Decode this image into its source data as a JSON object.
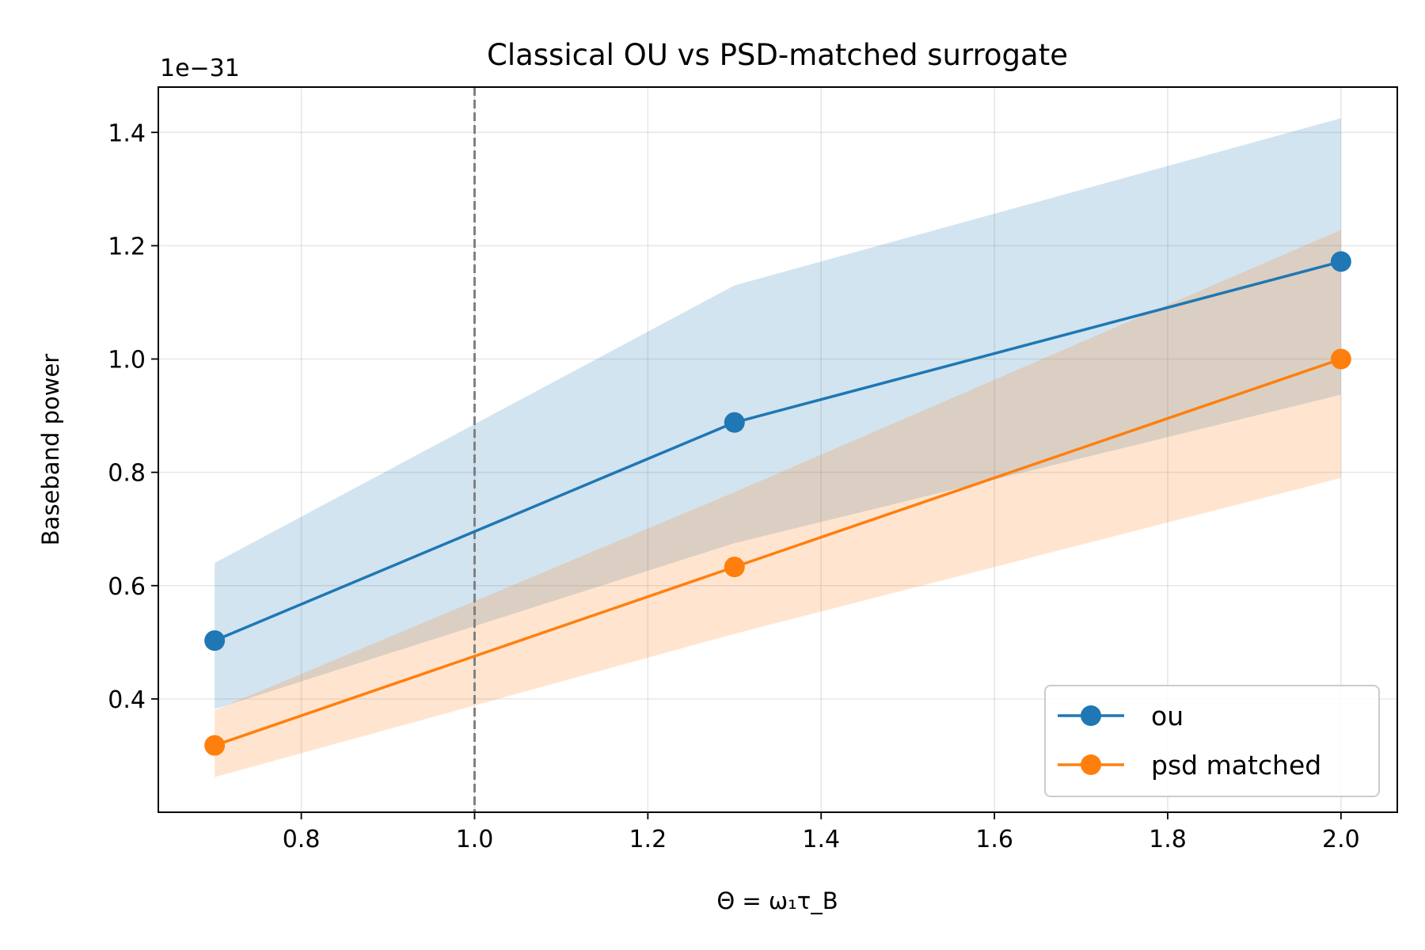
{
  "chart_data": {
    "type": "line",
    "title": "Classical OU vs PSD-matched surrogate",
    "xlabel": "Θ = ω₁τ_B",
    "ylabel": "Baseband power",
    "y_offset_label": "1e−31",
    "x": [
      0.7,
      1.3,
      2.0
    ],
    "xlim": [
      0.635,
      2.065
    ],
    "ylim": [
      0.2,
      1.48
    ],
    "x_ticks": [
      0.8,
      1.0,
      1.2,
      1.4,
      1.6,
      1.8,
      2.0
    ],
    "x_tick_labels": [
      "0.8",
      "1.0",
      "1.2",
      "1.4",
      "1.6",
      "1.8",
      "2.0"
    ],
    "y_ticks": [
      0.4,
      0.6,
      0.8,
      1.0,
      1.2,
      1.4
    ],
    "y_tick_labels": [
      "0.4",
      "0.6",
      "0.8",
      "1.0",
      "1.2",
      "1.4"
    ],
    "grid": true,
    "legend_position": "lower-right",
    "vline_x": 1.0,
    "series": [
      {
        "name": "ou",
        "color": "#1f77b4",
        "values": [
          0.503,
          0.888,
          1.172
        ],
        "band_lower": [
          0.382,
          0.675,
          0.937
        ],
        "band_upper": [
          0.64,
          1.13,
          1.425
        ]
      },
      {
        "name": "psd matched",
        "color": "#ff7f0e",
        "values": [
          0.318,
          0.633,
          1.0
        ],
        "band_lower": [
          0.262,
          0.515,
          0.79
        ],
        "band_upper": [
          0.38,
          0.765,
          1.228
        ]
      }
    ]
  }
}
